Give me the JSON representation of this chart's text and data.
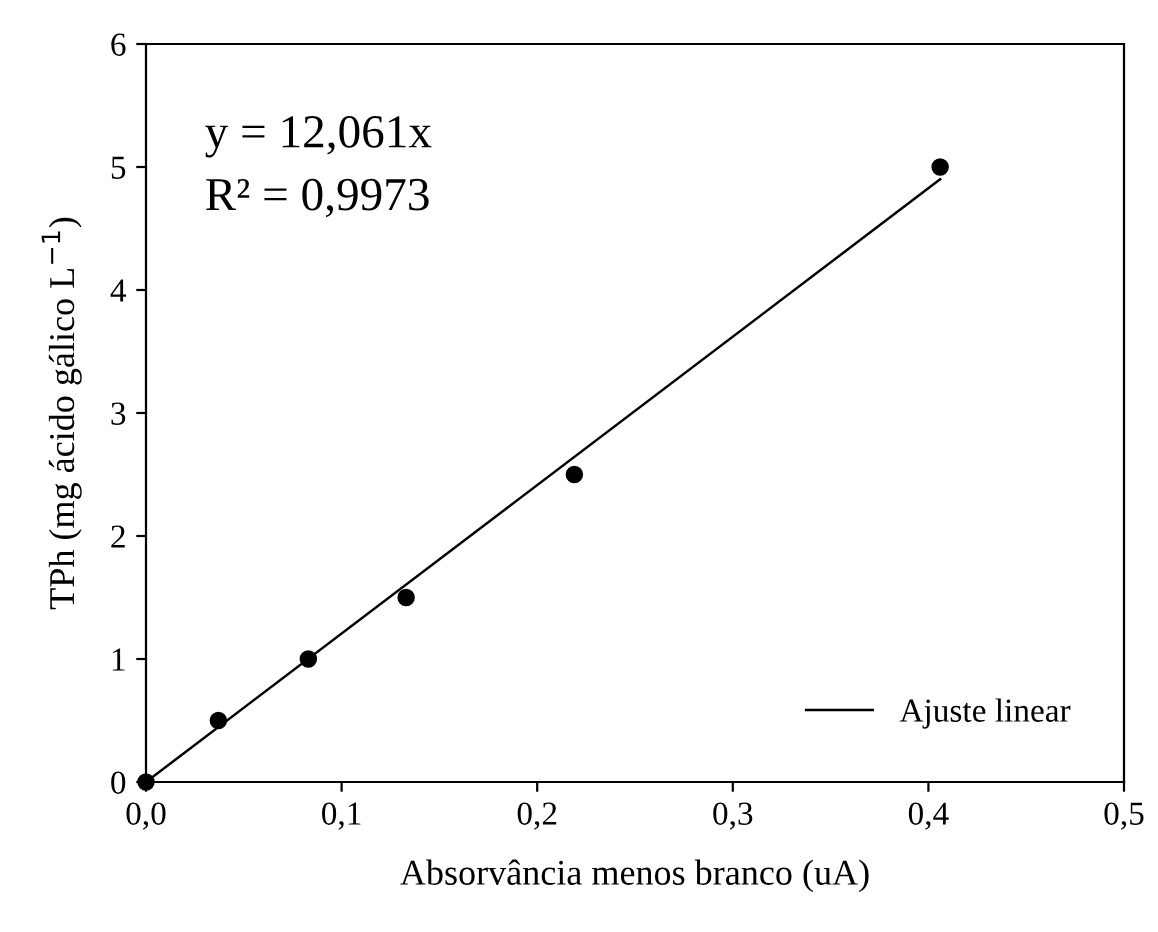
{
  "chart_data": {
    "type": "scatter",
    "xlabel": "Absorvância menos branco (uA)",
    "ylabel": "TPh (mg ácido gálico L$^{−1}$)",
    "x": [
      0.0,
      0.037,
      0.083,
      0.133,
      0.219,
      0.406
    ],
    "series": [
      {
        "color": "#000000",
        "marker": "circle",
        "values": [
          0.0,
          0.5,
          1.0,
          1.5,
          2.5,
          5.0
        ]
      },
      {
        "type": "line",
        "name": "Ajuste linear",
        "color": "#000000",
        "marker": "none",
        "line_style": "solid",
        "x": [
          0.0,
          0.406
        ],
        "values": [
          0.0,
          4.9
        ]
      }
    ],
    "xlim": [
      0.0,
      0.5
    ],
    "xticks": [
      {
        "value": 0.0,
        "label": "0,0"
      },
      {
        "value": 0.1,
        "label": "0,1"
      },
      {
        "value": 0.2,
        "label": "0,2"
      },
      {
        "value": 0.3,
        "label": "0,3"
      },
      {
        "value": 0.4,
        "label": "0,4"
      },
      {
        "value": 0.5,
        "label": "0,5"
      }
    ],
    "ylim": [
      0,
      6
    ],
    "yticks": [
      0,
      1,
      2,
      3,
      4,
      5,
      6
    ],
    "annotations": [
      "y = 12,061x",
      "R² = 0,9973"
    ],
    "legend": "bottom right",
    "grid": false
  }
}
